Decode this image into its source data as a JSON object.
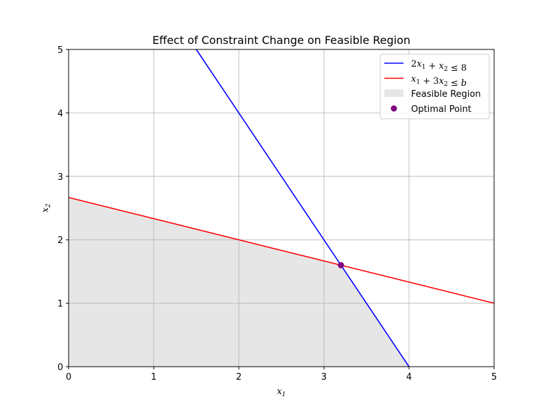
{
  "chart_data": {
    "type": "line",
    "title": "Effect of Constraint Change on Feasible Region",
    "xlabel": "x1",
    "ylabel": "x2",
    "xlim": [
      0,
      5
    ],
    "ylim": [
      0,
      5
    ],
    "xticks": [
      "0",
      "1",
      "2",
      "3",
      "4",
      "5"
    ],
    "yticks": [
      "0",
      "1",
      "2",
      "3",
      "4",
      "5"
    ],
    "grid": true,
    "legend_position": "top-right",
    "series": [
      {
        "name": "2x1 + x2 ≤ 8",
        "kind": "line",
        "color": "#0000ff",
        "x": [
          1.5,
          4.0
        ],
        "y": [
          5.0,
          0.0
        ]
      },
      {
        "name": "x1 + 3x2 ≤ b",
        "kind": "line",
        "color": "#ff0000",
        "x": [
          0.0,
          5.0
        ],
        "y": [
          2.6667,
          1.0
        ]
      },
      {
        "name": "Feasible Region",
        "kind": "area",
        "color": "#e6e6e6",
        "x": [
          0.0,
          3.2,
          4.0,
          0.0
        ],
        "y": [
          2.6667,
          1.6,
          0.0,
          0.0
        ]
      },
      {
        "name": "Optimal Point",
        "kind": "point",
        "color": "#800080",
        "x": [
          3.2
        ],
        "y": [
          1.6
        ]
      }
    ]
  }
}
